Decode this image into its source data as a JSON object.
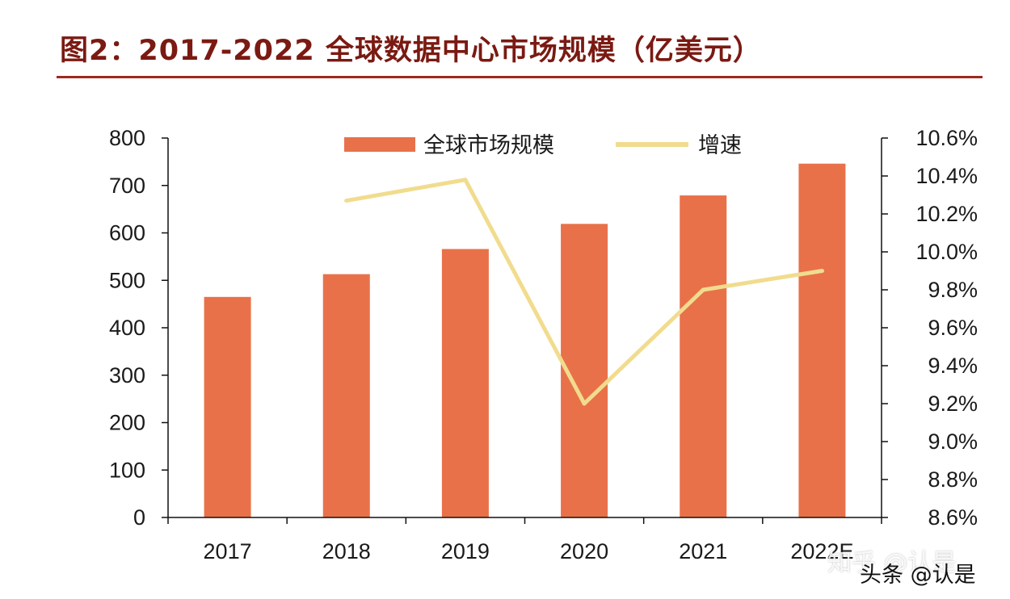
{
  "title": "图2：2017-2022 全球数据中心市场规模（亿美元）",
  "watermarks": [
    "知乎 @认是",
    "头条 @认是"
  ],
  "colors": {
    "bar": "#e8714a",
    "line": "#f1dc8e",
    "title": "#7a1a12",
    "rule": "#9e2a1f",
    "axis": "#111111"
  },
  "chart_data": {
    "type": "bar",
    "categories": [
      "2017",
      "2018",
      "2019",
      "2020",
      "2021",
      "2022E"
    ],
    "series": [
      {
        "name": "全球市场规模",
        "type": "bar",
        "axis": "left",
        "values": [
          465,
          513,
          566,
          619,
          679,
          746
        ]
      },
      {
        "name": "增速",
        "type": "line",
        "axis": "right",
        "values": [
          null,
          10.27,
          10.38,
          9.2,
          9.8,
          9.9
        ]
      }
    ],
    "y_left": {
      "min": 0,
      "max": 800,
      "ticks": [
        "0",
        "100",
        "200",
        "300",
        "400",
        "500",
        "600",
        "700",
        "800"
      ]
    },
    "y_right": {
      "min": 8.6,
      "max": 10.6,
      "ticks": [
        "8.6%",
        "8.8%",
        "9.0%",
        "9.2%",
        "9.4%",
        "9.6%",
        "9.8%",
        "10.0%",
        "10.2%",
        "10.4%",
        "10.6%"
      ]
    },
    "legend": {
      "position": "top-center"
    },
    "grid": false
  }
}
